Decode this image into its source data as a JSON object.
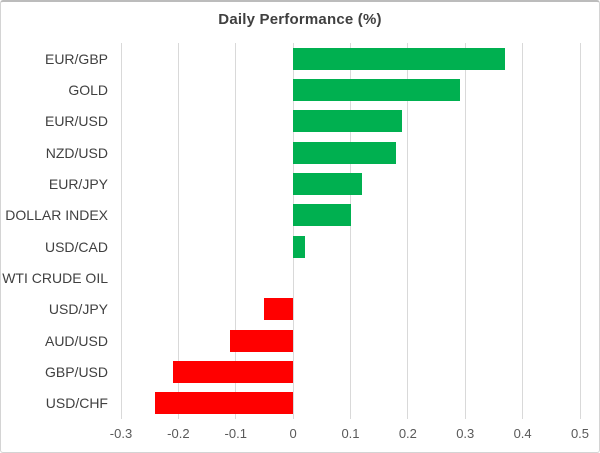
{
  "chart_data": {
    "type": "bar",
    "orientation": "horizontal",
    "title": "Daily Performance (%)",
    "xlabel": "",
    "ylabel": "",
    "categories": [
      "EUR/GBP",
      "GOLD",
      "EUR/USD",
      "NZD/USD",
      "EUR/JPY",
      "DOLLAR INDEX",
      "USD/CAD",
      "WTI CRUDE OIL",
      "USD/JPY",
      "AUD/USD",
      "GBP/USD",
      "USD/CHF"
    ],
    "values": [
      0.37,
      0.29,
      0.19,
      0.18,
      0.12,
      0.1,
      0.02,
      0.0,
      -0.05,
      -0.11,
      -0.21,
      -0.24
    ],
    "xlim": [
      -0.3,
      0.5
    ],
    "x_ticks": [
      "-0.3",
      "-0.2",
      "-0.1",
      "0",
      "0.1",
      "0.2",
      "0.3",
      "0.4",
      "0.5"
    ],
    "x_tick_values": [
      -0.3,
      -0.2,
      -0.1,
      0,
      0.1,
      0.2,
      0.3,
      0.4,
      0.5
    ],
    "grid": true,
    "legend": "none",
    "colors": {
      "positive": "#00b050",
      "negative": "#ff0000",
      "gridline": "#d9d9d9",
      "title_text": "#404040",
      "category_text": "#404040",
      "tick_text": "#595959"
    }
  }
}
